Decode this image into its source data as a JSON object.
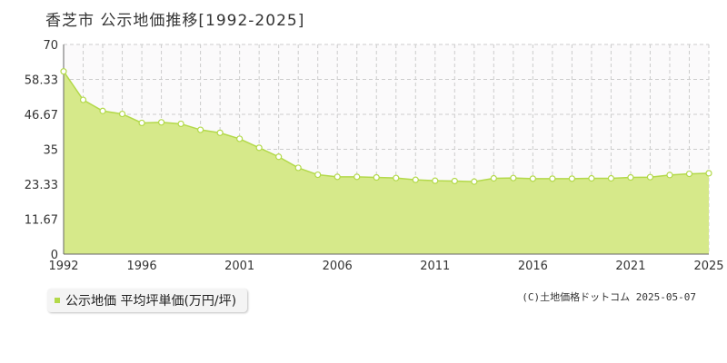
{
  "title": "香芝市 公示地価推移[1992-2025]",
  "legend": {
    "label": "公示地価 平均坪単価(万円/坪)"
  },
  "copyright": "(C)土地価格ドットコム 2025-05-07",
  "colors": {
    "fill": "#d6e98a",
    "line": "#b3d94a",
    "marker_fill": "#ffffff",
    "marker_stroke": "#b3d94a",
    "grid": "#cccccc",
    "plot_bg": "#fbfafb",
    "axis": "#666666",
    "legend_marker": "#b3d94a"
  },
  "chart_data": {
    "type": "area",
    "title": "香芝市 公示地価推移[1992-2025]",
    "xlabel": "",
    "ylabel": "",
    "x": [
      1992,
      1993,
      1994,
      1995,
      1996,
      1997,
      1998,
      1999,
      2000,
      2001,
      2002,
      2003,
      2004,
      2005,
      2006,
      2007,
      2008,
      2009,
      2010,
      2011,
      2012,
      2013,
      2014,
      2015,
      2016,
      2017,
      2018,
      2019,
      2020,
      2021,
      2022,
      2023,
      2024,
      2025
    ],
    "series": [
      {
        "name": "公示地価 平均坪単価(万円/坪)",
        "values": [
          61.0,
          51.5,
          47.8,
          46.8,
          43.8,
          44.0,
          43.5,
          41.5,
          40.5,
          38.5,
          35.5,
          32.5,
          28.8,
          26.5,
          25.8,
          25.8,
          25.6,
          25.4,
          24.8,
          24.5,
          24.4,
          24.2,
          25.3,
          25.4,
          25.2,
          25.2,
          25.2,
          25.3,
          25.3,
          25.6,
          25.7,
          26.4,
          26.8,
          27.0
        ]
      }
    ],
    "xlim": [
      1992,
      2025
    ],
    "ylim": [
      0,
      70
    ],
    "x_ticks": [
      "1992",
      "1996",
      "2001",
      "2006",
      "2011",
      "2016",
      "2021",
      "2025"
    ],
    "y_ticks": [
      "0",
      "11.67",
      "23.33",
      "35",
      "46.67",
      "58.33",
      "70"
    ],
    "grid": true,
    "legend_position": "bottom-left"
  }
}
